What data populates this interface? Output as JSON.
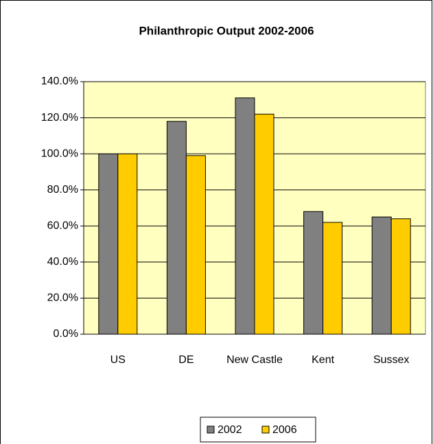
{
  "chart_data": {
    "type": "bar",
    "title": "Philanthropic Output 2002-2006",
    "categories": [
      "US",
      "DE",
      "New  Castle",
      "Kent",
      "Sussex"
    ],
    "series": [
      {
        "name": "2002",
        "color": "#808080",
        "values": [
          100,
          118,
          131,
          68,
          65
        ]
      },
      {
        "name": "2006",
        "color": "#ffcc00",
        "values": [
          100,
          99,
          122,
          62,
          64
        ]
      }
    ],
    "ylim": [
      0,
      140
    ],
    "yticks": [
      {
        "value": 0,
        "label": "0.0%"
      },
      {
        "value": 20,
        "label": "20.0%"
      },
      {
        "value": 40,
        "label": "40.0%"
      },
      {
        "value": 60,
        "label": "60.0%"
      },
      {
        "value": 80,
        "label": "80.0%"
      },
      {
        "value": 100,
        "label": "100.0%"
      },
      {
        "value": 120,
        "label": "120.0%"
      },
      {
        "value": 140,
        "label": "140.0%"
      }
    ],
    "grid": true,
    "legend": "bottom"
  }
}
